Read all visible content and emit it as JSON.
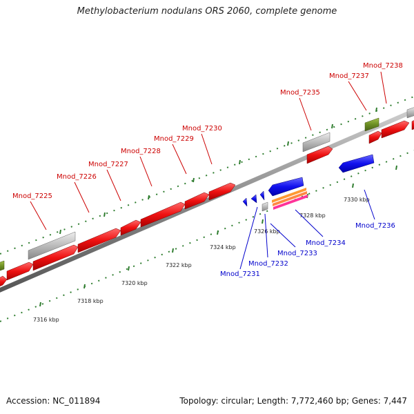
{
  "title": "Methylobacterium nodulans ORS 2060, complete genome",
  "footer": {
    "accession": "Accession: NC_011894",
    "summary": "Topology: circular; Length: 7,772,460 bp; Genes: 7,447"
  },
  "colors": {
    "forward_label": "#cc0000",
    "reverse_label": "#0000cc",
    "cds": "#ee1111",
    "cds_reverse": "#1111dd",
    "other_gene": "#bbbbbb",
    "rna": "#6b8e23",
    "kbp_tick": "#2f7d2f"
  },
  "scale_labels": [
    "7316 kbp",
    "7318 kbp",
    "7320 kbp",
    "7322 kbp",
    "7324 kbp",
    "7326 kbp",
    "7328 kbp",
    "7330 kbp"
  ],
  "forward_gene_labels": [
    "Mnod_7225",
    "Mnod_7226",
    "Mnod_7227",
    "Mnod_7228",
    "Mnod_7229",
    "Mnod_7230",
    "Mnod_7235",
    "Mnod_7237",
    "Mnod_7238"
  ],
  "reverse_gene_labels": [
    "Mnod_7231",
    "Mnod_7232",
    "Mnod_7233",
    "Mnod_7234",
    "Mnod_7236"
  ]
}
